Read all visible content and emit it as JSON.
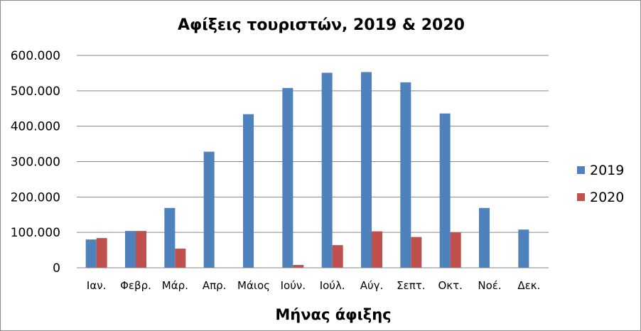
{
  "chart_data": {
    "type": "bar",
    "title": "Αφίξεις τουριστών, 2019 & 2020",
    "xlabel": "Μήνας άφιξης",
    "ylabel": "",
    "ylim": [
      0,
      600000
    ],
    "yticks": [
      {
        "value": 0,
        "label": "0"
      },
      {
        "value": 100000,
        "label": "100.000"
      },
      {
        "value": 200000,
        "label": "200.000"
      },
      {
        "value": 300000,
        "label": "300.000"
      },
      {
        "value": 400000,
        "label": "400.000"
      },
      {
        "value": 500000,
        "label": "500.000"
      },
      {
        "value": 600000,
        "label": "600.000"
      }
    ],
    "categories": [
      "Ιαν.",
      "Φεβρ.",
      "Μάρ.",
      "Απρ.",
      "Μάιος",
      "Ιούν.",
      "Ιούλ.",
      "Αύγ.",
      "Σεπτ.",
      "Οκτ.",
      "Νοέ.",
      "Δεκ."
    ],
    "series": [
      {
        "name": "2019",
        "color": "#4f81bd",
        "values": [
          80000,
          104000,
          169000,
          328000,
          434000,
          508000,
          551000,
          553000,
          524000,
          436000,
          169000,
          108000
        ]
      },
      {
        "name": "2020",
        "color": "#c0504d",
        "values": [
          84000,
          104000,
          54000,
          0,
          0,
          8000,
          64000,
          103000,
          87000,
          100000,
          0,
          0
        ]
      }
    ],
    "grid": true,
    "legend_position": "right"
  }
}
